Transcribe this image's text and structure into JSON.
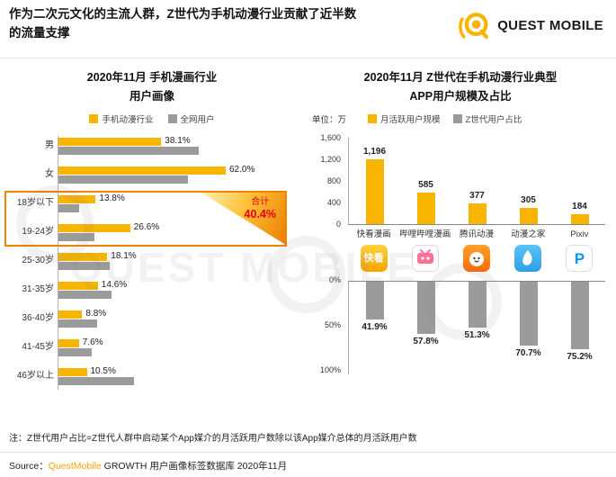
{
  "header": {
    "title": "作为二次元文化的主流人群，Z世代为手机动漫行业贡献了近半数的流量支撑",
    "logo_text": "QUEST MOBILE"
  },
  "left_panel": {
    "title_line1": "2020年11月 手机漫画行业",
    "title_line2": "用户画像",
    "legend": [
      {
        "label": "手机动漫行业",
        "color": "#F8B500"
      },
      {
        "label": "全网用户",
        "color": "#9B9B9B"
      }
    ]
  },
  "right_panel": {
    "title_line1": "2020年11月 Z世代在手机动漫行业典型",
    "title_line2": "APP用户规模及占比",
    "unit_label": "单位：万",
    "legend": [
      {
        "label": "月活跃用户规模",
        "color": "#F8B500"
      },
      {
        "label": "Z世代用户占比",
        "color": "#9B9B9B"
      }
    ],
    "app_icons": [
      "kuaikan-comic-app-icon",
      "bilibili-comic-app-icon",
      "tencent-comic-app-icon",
      "dongmanzhijia-app-icon",
      "pixiv-app-icon"
    ],
    "icon_glyphs": {
      "kuaikan": "快看",
      "pixiv": "P"
    }
  },
  "note": "注：Z世代用户占比=Z世代人群中启动某个App媒介的月活跃用户数除以该App媒介总体的月活跃用户数",
  "source": {
    "prefix": "Source：",
    "brand": "QuestMobile",
    "suffix": " GROWTH 用户画像标签数据库 2020年11月"
  },
  "watermark_text": "QUEST MOBILE",
  "chart_data": [
    {
      "type": "bar",
      "orientation": "horizontal",
      "title": "2020年11月 手机漫画行业用户画像",
      "unit": "%",
      "legend_position": "top",
      "xlim": [
        0,
        70
      ],
      "grid": false,
      "categories": [
        "男",
        "女",
        "18岁以下",
        "19-24岁",
        "25-30岁",
        "31-35岁",
        "36-40岁",
        "41-45岁",
        "46岁以上"
      ],
      "series": [
        {
          "name": "手机动漫行业",
          "color": "#F8B500",
          "values": [
            38.1,
            62.0,
            13.8,
            26.6,
            18.1,
            14.6,
            8.8,
            7.6,
            10.5
          ],
          "labels": [
            "38.1%",
            "62.0%",
            "13.8%",
            "26.6%",
            "18.1%",
            "14.6%",
            "8.8%",
            "7.6%",
            "10.5%"
          ]
        },
        {
          "name": "全网用户",
          "color": "#9B9B9B",
          "estimated": true,
          "values": [
            52.0,
            48.0,
            7.8,
            13.4,
            18.9,
            19.6,
            14.2,
            12.3,
            28.0
          ],
          "labels": []
        }
      ],
      "highlight": {
        "categories": [
          "18岁以下",
          "19-24岁"
        ],
        "label": "合计",
        "value": "40.4%"
      }
    },
    {
      "type": "bar",
      "title": "2020年11月 Z世代在手机动漫行业典型APP用户规模及占比",
      "unit_label": "单位：万",
      "categories": [
        "快看漫画",
        "哔哩哔哩漫画",
        "腾讯动漫",
        "动漫之家",
        "Pixiv"
      ],
      "series": [
        {
          "name": "月活跃用户规模",
          "unit": "万",
          "color": "#F8B500",
          "direction": "up",
          "ylim": [
            0,
            1600
          ],
          "axis_ticks": [
            "0",
            "400",
            "800",
            "1,200",
            "1,600"
          ],
          "values": [
            1196,
            585,
            377,
            305,
            184
          ],
          "labels": [
            "1,196",
            "585",
            "377",
            "305",
            "184"
          ]
        },
        {
          "name": "Z世代用户占比",
          "unit": "%",
          "color": "#9B9B9B",
          "direction": "down",
          "ylim": [
            0,
            100
          ],
          "axis_ticks": [
            "0%",
            "50%",
            "100%"
          ],
          "values": [
            41.9,
            57.8,
            51.3,
            70.7,
            75.2
          ],
          "labels": [
            "41.9%",
            "57.8%",
            "51.3%",
            "70.7%",
            "75.2%"
          ]
        }
      ]
    }
  ]
}
